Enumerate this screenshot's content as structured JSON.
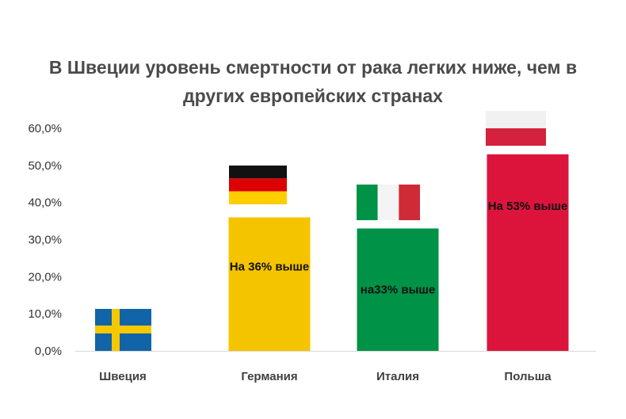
{
  "chart_data": {
    "type": "bar",
    "title_lines": [
      "В Швеции уровень смертности от рака легких ниже, чем в",
      "других европейских странах"
    ],
    "categories": [
      "Швеция",
      "Германия",
      "Италия",
      "Польша"
    ],
    "values": [
      0,
      36,
      33,
      53
    ],
    "bar_labels": [
      "",
      "На 36% выше",
      "на33% выше",
      "На 53% выше"
    ],
    "bar_colors": [
      "#ffffff",
      "#f5c400",
      "#009246",
      "#dc143c"
    ],
    "flag_icons": [
      "sweden-flag-icon",
      "germany-flag-icon",
      "italy-flag-icon",
      "poland-flag-icon"
    ],
    "yticks": [
      "0,0%",
      "10,0%",
      "20,0%",
      "30,0%",
      "40,0%",
      "50,0%",
      "60,0%"
    ],
    "ylim": [
      0,
      60
    ],
    "grid": false,
    "legend": "none"
  }
}
